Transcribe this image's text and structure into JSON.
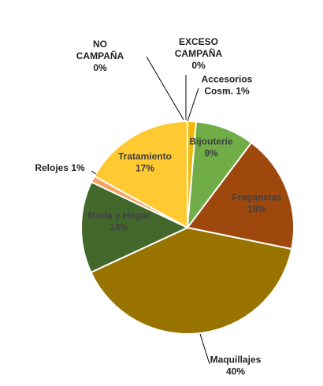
{
  "chart_data": {
    "type": "pie",
    "title": "",
    "start_angle_deg": 0,
    "direction": "clockwise",
    "slice_border_color": "#ffffff",
    "slices": [
      {
        "name": "Accesorios Cosm.",
        "value": 1.3,
        "label_lines": [
          "Accesorios",
          "Cosm. 1%"
        ],
        "color": "#F2B707",
        "label_color": "#222222"
      },
      {
        "name": "Bijouterie",
        "value": 9,
        "label_lines": [
          "Bijouterie",
          "9%"
        ],
        "color": "#70AD47",
        "label_color": "#404040"
      },
      {
        "name": "Fragancias",
        "value": 18,
        "label_lines": [
          "Fragancias",
          "18%"
        ],
        "color": "#9E480E",
        "label_color": "#404040"
      },
      {
        "name": "Maquillajes",
        "value": 40,
        "label_lines": [
          "Maquillajes",
          "40%"
        ],
        "color": "#997300",
        "label_color": "#222222"
      },
      {
        "name": "Moda y Hogar",
        "value": 14,
        "label_lines": [
          "Moda y Hogar",
          "14%"
        ],
        "color": "#43682B",
        "label_color": "#404040"
      },
      {
        "name": "Relojes",
        "value": 1,
        "label_lines": [
          "Relojes 1%"
        ],
        "color": "#F4A460",
        "label_color": "#222222"
      },
      {
        "name": "Tratamiento",
        "value": 17,
        "label_lines": [
          "Tratamiento",
          "17%"
        ],
        "color": "#FFC931",
        "label_color": "#404040"
      },
      {
        "name": "NO CAMPAÑA",
        "value": 0,
        "label_lines": [
          "NO",
          "CAMPAÑA",
          "0%"
        ],
        "color": "#BFBFBF",
        "label_color": "#222222"
      },
      {
        "name": "EXCESO CAMPAÑA",
        "value": 0,
        "label_lines": [
          "EXCESO",
          "CAMPAÑA",
          "0%"
        ],
        "color": "#A5A5A5",
        "label_color": "#222222"
      }
    ]
  }
}
